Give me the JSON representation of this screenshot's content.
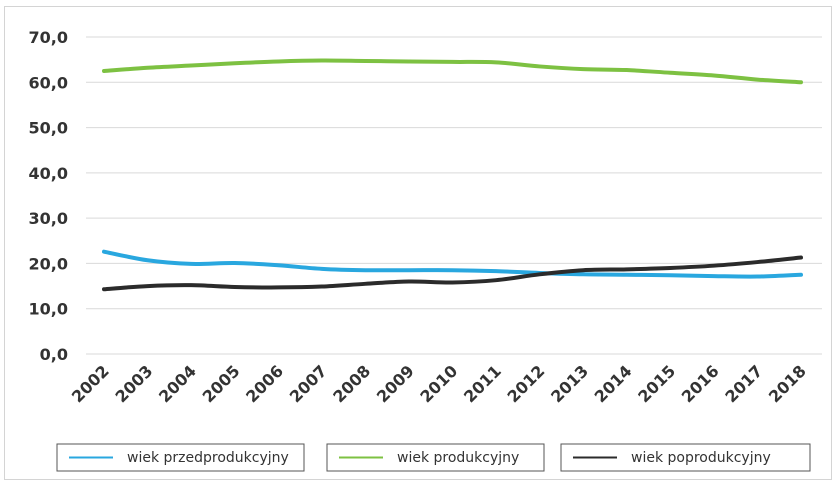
{
  "chart_data": {
    "type": "line",
    "x": [
      "2002",
      "2003",
      "2004",
      "2005",
      "2006",
      "2007",
      "2008",
      "2009",
      "2010",
      "2011",
      "2012",
      "2013",
      "2014",
      "2015",
      "2016",
      "2017",
      "2018"
    ],
    "yticks": [
      "0,0",
      "10,0",
      "20,0",
      "30,0",
      "40,0",
      "50,0",
      "60,0",
      "70,0"
    ],
    "ylim": [
      0,
      70
    ],
    "grid": true,
    "legend_position": "bottom",
    "series": [
      {
        "name": "wiek przedprodukcyjny",
        "color": "#29a7df",
        "values": [
          22.6,
          20.7,
          19.9,
          20.1,
          19.6,
          18.8,
          18.5,
          18.5,
          18.5,
          18.3,
          17.9,
          17.6,
          17.5,
          17.4,
          17.2,
          17.1,
          17.5
        ]
      },
      {
        "name": "wiek produkcyjny",
        "color": "#7dc142",
        "values": [
          62.5,
          63.2,
          63.7,
          64.2,
          64.6,
          64.8,
          64.7,
          64.6,
          64.5,
          64.4,
          63.5,
          62.9,
          62.7,
          62.1,
          61.5,
          60.6,
          60.0
        ]
      },
      {
        "name": "wiek poprodukcyjny",
        "color": "#2b2b2b",
        "values": [
          14.3,
          15.0,
          15.2,
          14.8,
          14.7,
          14.9,
          15.5,
          16.0,
          15.8,
          16.3,
          17.6,
          18.5,
          18.7,
          19.0,
          19.5,
          20.3,
          21.3
        ]
      }
    ]
  }
}
